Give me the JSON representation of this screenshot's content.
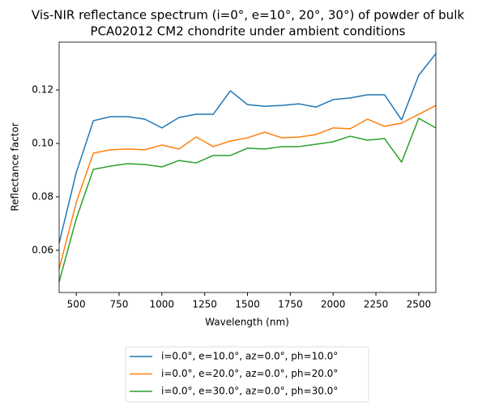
{
  "chart_data": {
    "type": "line",
    "title": [
      "Vis-NIR reflectance spectrum (i=0°, e=10°, 20°, 30°) of powder of bulk",
      "PCA02012 CM2 chondrite under ambient conditions"
    ],
    "xlabel": "Wavelength (nm)",
    "ylabel": "Reflectance factor",
    "x": [
      400,
      500,
      600,
      700,
      800,
      900,
      1000,
      1100,
      1200,
      1300,
      1400,
      1500,
      1600,
      1700,
      1800,
      1900,
      2000,
      2100,
      2200,
      2300,
      2400,
      2500,
      2600
    ],
    "series": [
      {
        "name": "i=0.0°, e=10.0°, az=0.0°, ph=10.0°",
        "color": "#1f77b4",
        "values": [
          0.0627,
          0.0891,
          0.1085,
          0.11,
          0.11,
          0.1091,
          0.1058,
          0.1097,
          0.1109,
          0.1109,
          0.1197,
          0.1145,
          0.1139,
          0.1142,
          0.1148,
          0.1136,
          0.1164,
          0.117,
          0.1182,
          0.1182,
          0.1088,
          0.1255,
          0.1336
        ]
      },
      {
        "name": "i=0.0°, e=20.0°, az=0.0°, ph=20.0°",
        "color": "#ff7f0e",
        "values": [
          0.053,
          0.0779,
          0.0964,
          0.0976,
          0.0979,
          0.0976,
          0.0994,
          0.0979,
          0.1024,
          0.0988,
          0.1009,
          0.1021,
          0.1042,
          0.1021,
          0.1024,
          0.1033,
          0.1058,
          0.1055,
          0.1091,
          0.1064,
          0.1076,
          0.1109,
          0.1142
        ]
      },
      {
        "name": "i=0.0°, e=30.0°, az=0.0°, ph=30.0°",
        "color": "#2ca02c",
        "values": [
          0.0482,
          0.0718,
          0.0903,
          0.0915,
          0.0924,
          0.0921,
          0.0912,
          0.0936,
          0.0927,
          0.0955,
          0.0955,
          0.0982,
          0.0979,
          0.0988,
          0.0988,
          0.0997,
          0.1006,
          0.1027,
          0.1012,
          0.1018,
          0.093,
          0.1094,
          0.1058
        ]
      }
    ],
    "xlim": [
      400,
      2600
    ],
    "xticks": [
      500,
      750,
      1000,
      1250,
      1500,
      1750,
      2000,
      2250,
      2500
    ],
    "ylim": [
      0.0442,
      0.1379
    ],
    "yticks": [
      0.06,
      0.08,
      {
        "value": 0.1,
        "label": "0.10"
      },
      0.12
    ],
    "legend": "bottom"
  }
}
